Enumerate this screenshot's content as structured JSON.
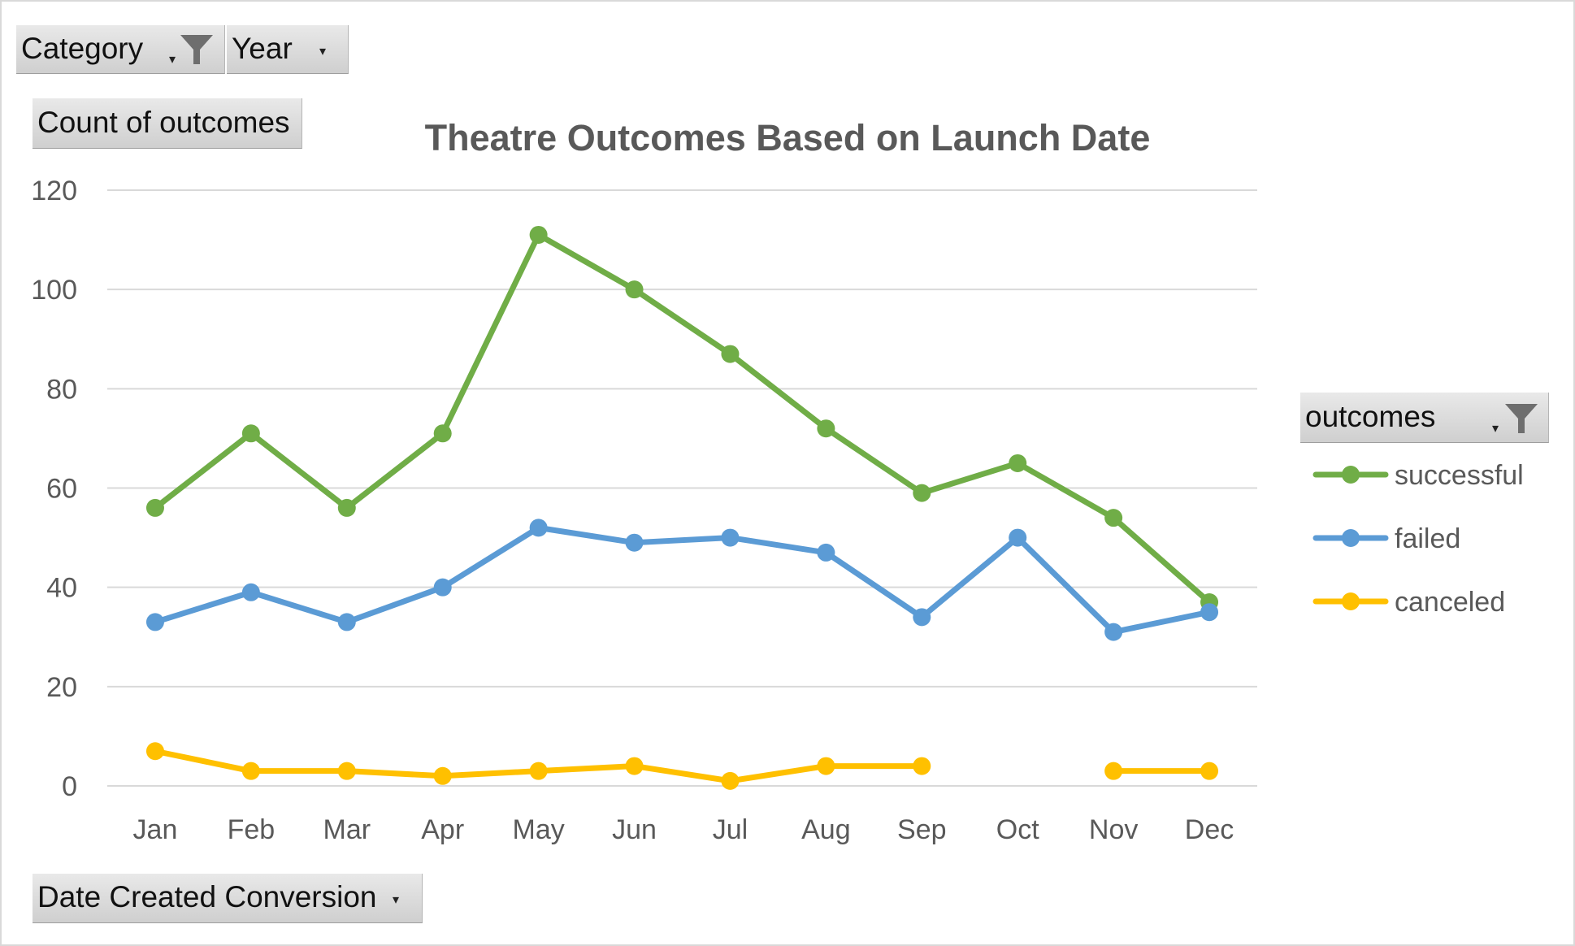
{
  "filters": {
    "category_label": "Category",
    "year_label": "Year",
    "values_label": "Count of outcomes",
    "axis_field_label": "Date Created Conversion",
    "legend_field_label": "outcomes"
  },
  "icons": {
    "filter": "funnel-icon",
    "dropdown": "dropdown-arrow-icon"
  },
  "colors": {
    "successful": "#70ad47",
    "failed": "#5b9bd5",
    "canceled": "#ffc000",
    "gridline": "#d9d9d9",
    "title": "#595959",
    "axis_text": "#595959"
  },
  "chart_data": {
    "type": "line",
    "title": "Theatre Outcomes Based on Launch Date",
    "xlabel": "",
    "ylabel": "",
    "ylim": [
      0,
      120
    ],
    "yticks": [
      "0",
      "20",
      "40",
      "60",
      "80",
      "100",
      "120"
    ],
    "grid": true,
    "legend_position": "right",
    "categories": [
      "Jan",
      "Feb",
      "Mar",
      "Apr",
      "May",
      "Jun",
      "Jul",
      "Aug",
      "Sep",
      "Oct",
      "Nov",
      "Dec"
    ],
    "series": [
      {
        "name": "successful",
        "color": "#70ad47",
        "values": [
          56,
          71,
          56,
          71,
          111,
          100,
          87,
          72,
          59,
          65,
          54,
          37
        ]
      },
      {
        "name": "failed",
        "color": "#5b9bd5",
        "values": [
          33,
          39,
          33,
          40,
          52,
          49,
          50,
          47,
          34,
          50,
          31,
          35
        ]
      },
      {
        "name": "canceled",
        "color": "#ffc000",
        "values": [
          7,
          3,
          3,
          2,
          3,
          4,
          1,
          4,
          4,
          null,
          3,
          3
        ]
      }
    ]
  }
}
